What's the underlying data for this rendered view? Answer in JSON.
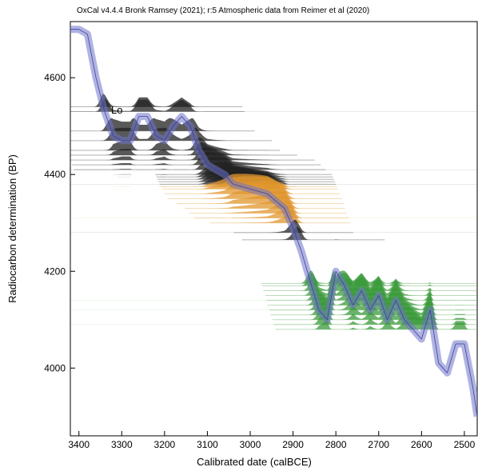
{
  "chart_data": {
    "type": "calibration",
    "title": "OxCal v4.4.4 Bronk Ramsey (2021); r:5 Atmospheric data from Reimer et al (2020)",
    "x_label": "Calibrated date (calBCE)",
    "y_label": "Radiocarbon determination (BP)",
    "annotation": "Lo",
    "xlim": [
      3420,
      2470
    ],
    "ylim": [
      3860,
      4716
    ],
    "xticks": [
      3400,
      3300,
      3200,
      3100,
      3000,
      2900,
      2800,
      2700,
      2600,
      2500
    ],
    "yticks": [
      4000,
      4200,
      4400,
      4600
    ],
    "curve": {
      "color": "#6f74c8",
      "x": [
        3420,
        3400,
        3380,
        3360,
        3340,
        3320,
        3300,
        3280,
        3260,
        3240,
        3220,
        3200,
        3180,
        3160,
        3140,
        3120,
        3100,
        3080,
        3060,
        3040,
        3000,
        2960,
        2920,
        2900,
        2880,
        2860,
        2840,
        2820,
        2800,
        2780,
        2760,
        2740,
        2720,
        2700,
        2680,
        2660,
        2640,
        2620,
        2600,
        2580,
        2560,
        2540,
        2520,
        2500,
        2480,
        2470
      ],
      "values": [
        4700,
        4700,
        4690,
        4600,
        4530,
        4480,
        4470,
        4470,
        4520,
        4520,
        4480,
        4470,
        4500,
        4520,
        4500,
        4450,
        4420,
        4410,
        4400,
        4380,
        4370,
        4360,
        4330,
        4290,
        4240,
        4180,
        4120,
        4100,
        4200,
        4170,
        4130,
        4160,
        4120,
        4150,
        4100,
        4140,
        4100,
        4080,
        4060,
        4120,
        4010,
        3990,
        4050,
        4050,
        3960,
        3900
      ]
    },
    "groups": [
      {
        "color": "#222222",
        "error": 25,
        "values": [
          4540,
          4530,
          4490,
          4470,
          4450,
          4440,
          4430,
          4420,
          4410,
          4400,
          4395,
          4390,
          4385,
          4380
        ]
      },
      {
        "color": "#e0962c",
        "error": 25,
        "values": [
          4375,
          4370,
          4360,
          4350,
          4340,
          4330,
          4320,
          4310,
          4300
        ]
      },
      {
        "color": "#222222",
        "error": 25,
        "values": [
          4280,
          4265
        ]
      },
      {
        "color": "#3a9a3a",
        "error": 25,
        "values": [
          4175,
          4170,
          4160,
          4150,
          4140,
          4130,
          4120,
          4110,
          4100,
          4090,
          4080
        ]
      }
    ]
  }
}
